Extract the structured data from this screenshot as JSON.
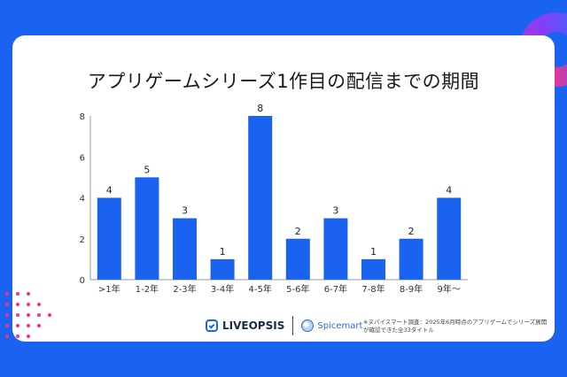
{
  "title": "アプリゲームシリーズ1作目の配信までの期間",
  "chart_data": {
    "type": "bar",
    "title": "アプリゲームシリーズ1作目の配信までの期間",
    "categories": [
      ">1年",
      "1-2年",
      "2-3年",
      "3-4年",
      "4-5年",
      "5-6年",
      "6-7年",
      "7-8年",
      "8-9年",
      "9年〜"
    ],
    "values": [
      4,
      5,
      3,
      1,
      8,
      2,
      3,
      1,
      2,
      4
    ],
    "yticks": [
      0,
      2,
      4,
      6,
      8
    ],
    "ylim": [
      0,
      8
    ],
    "xlabel": "",
    "ylabel": "",
    "grid": false,
    "bar_color": "#1a63f0",
    "data_labels": true
  },
  "footer": {
    "liveopsis": "LIVEOPSIS",
    "spicemart": "Spicemart",
    "note": "※ヌパイスマート調査：2025年6月時点のアプリゲームでシリーズ展開が確認できた全33タイトル"
  },
  "colors": {
    "frame": "#1a63f0",
    "accent_pink": "#ff2d8a",
    "bar": "#1a63f0"
  }
}
